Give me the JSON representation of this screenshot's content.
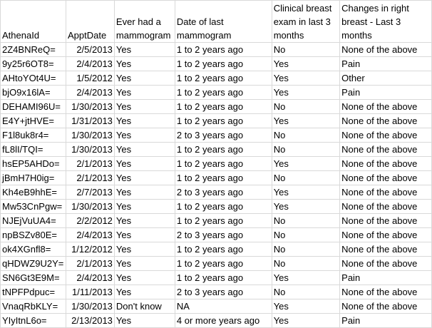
{
  "headers": [
    "AthenaId",
    "ApptDate",
    "Ever had a mammogram",
    "Date of last mammogram",
    "Clinical breast exam in last 3 months",
    "Changes in right breast - Last 3 months"
  ],
  "rows": [
    [
      "2Z4BNReQ=",
      "2/5/2013",
      "Yes",
      "1 to 2 years ago",
      "No",
      "None of the above"
    ],
    [
      "9y25r6OT8=",
      "2/4/2013",
      "Yes",
      "1 to 2 years ago",
      "Yes",
      "Pain"
    ],
    [
      "AHtoYOt4U=",
      "1/5/2012",
      "Yes",
      "1 to 2 years ago",
      "Yes",
      "Other"
    ],
    [
      "bjO9x16lA=",
      "2/4/2013",
      "Yes",
      "1 to 2 years ago",
      "Yes",
      "Pain"
    ],
    [
      "DEHAMI96U=",
      "1/30/2013",
      "Yes",
      "1 to 2 years ago",
      "No",
      "None of the above"
    ],
    [
      "E4Y+jtHVE=",
      "1/31/2013",
      "Yes",
      "1 to 2 years ago",
      "Yes",
      "None of the above"
    ],
    [
      "F1l8uk8r4=",
      "1/30/2013",
      "Yes",
      "2 to 3 years ago",
      "No",
      "None of the above"
    ],
    [
      "fL8lI/TQI=",
      "1/30/2013",
      "Yes",
      "1 to 2 years ago",
      "No",
      "None of the above"
    ],
    [
      "hsEP5AHDo=",
      "2/1/2013",
      "Yes",
      "1 to 2 years ago",
      "Yes",
      "None of the above"
    ],
    [
      "jBmH7H0ig=",
      "2/1/2013",
      "Yes",
      "1 to 2 years ago",
      "No",
      "None of the above"
    ],
    [
      "Kh4eB9hhE=",
      "2/7/2013",
      "Yes",
      "2 to 3 years ago",
      "Yes",
      "None of the above"
    ],
    [
      "Mw53CnPgw=",
      "1/30/2013",
      "Yes",
      "1 to 2 years ago",
      "Yes",
      "None of the above"
    ],
    [
      "NJEjVuUA4=",
      "2/2/2012",
      "Yes",
      "1 to 2 years ago",
      "No",
      "None of the above"
    ],
    [
      "npBSZv80E=",
      "2/4/2013",
      "Yes",
      "2 to 3 years ago",
      "No",
      "None of the above"
    ],
    [
      "ok4XGnfl8=",
      "1/12/2012",
      "Yes",
      "1 to 2 years ago",
      "No",
      "None of the above"
    ],
    [
      "qHDWZ9U2Y=",
      "2/1/2013",
      "Yes",
      "1 to 2 years ago",
      "No",
      "None of the above"
    ],
    [
      "SN6Gt3E9M=",
      "2/4/2013",
      "Yes",
      "1 to 2 years ago",
      "Yes",
      "Pain"
    ],
    [
      "tNPFPdpuc=",
      "1/11/2013",
      "Yes",
      "2 to 3 years ago",
      "No",
      "None of the above"
    ],
    [
      "VnaqRbKLY=",
      "1/30/2013",
      "Don't know",
      "NA",
      "Yes",
      "None of the above"
    ],
    [
      "YIyItnL6o=",
      "2/13/2013",
      "Yes",
      "4 or more years ago",
      "Yes",
      "Pain"
    ]
  ]
}
